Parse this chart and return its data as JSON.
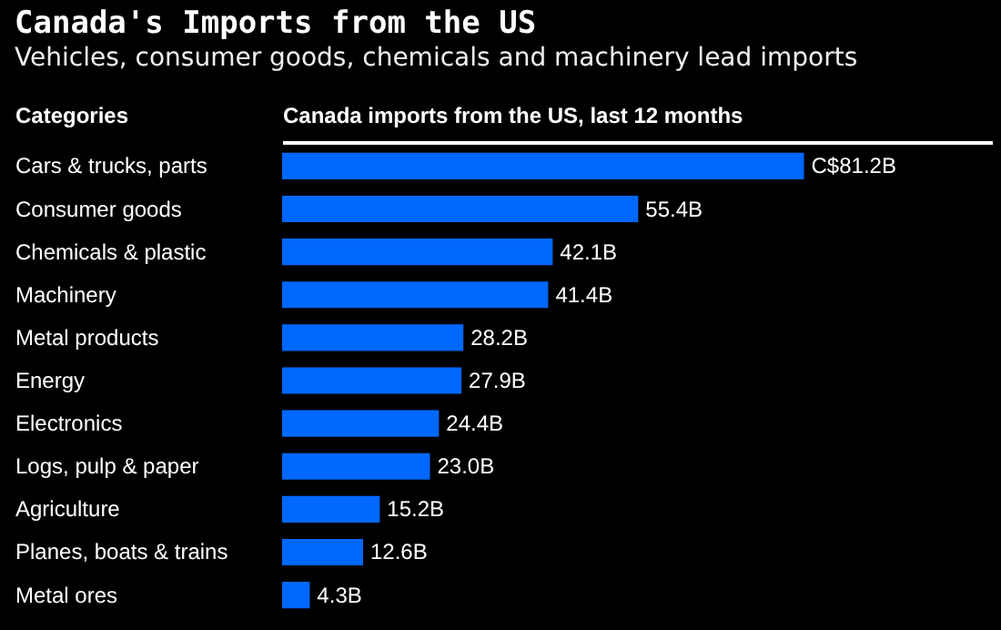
{
  "chart_data": {
    "type": "bar",
    "orientation": "horizontal",
    "title": "Canada's Imports from the US",
    "subtitle": "Vehicles, consumer goods, chemicals and machinery lead imports",
    "ylabel": "Categories",
    "xlabel": "Canada imports from the US, last 12 months",
    "categories": [
      "Cars & trucks, parts",
      "Consumer goods",
      "Chemicals & plastic",
      "Machinery",
      "Metal products",
      "Energy",
      "Electronics",
      "Logs, pulp & paper",
      "Agriculture",
      "Planes, boats & trains",
      "Metal ores"
    ],
    "series": [
      {
        "color": "#0068ff",
        "values": [
          81.2,
          55.4,
          42.1,
          41.4,
          28.2,
          27.9,
          24.4,
          23.0,
          15.2,
          12.6,
          4.3
        ],
        "value_labels": [
          "C$81.2B",
          "55.4B",
          "42.1B",
          "41.4B",
          "28.2B",
          "27.9B",
          "24.4B",
          "23.0B",
          "15.2B",
          "12.6B",
          "4.3B"
        ]
      }
    ],
    "grid": false
  }
}
